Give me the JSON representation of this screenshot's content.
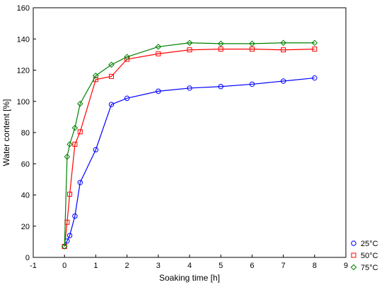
{
  "chart_data": {
    "type": "line",
    "title": "",
    "xlabel": "Soaking time [h]",
    "ylabel": "Water content [%]",
    "xlim": [
      -1,
      9
    ],
    "ylim": [
      0,
      160
    ],
    "xticks": [
      -1,
      0,
      1,
      2,
      3,
      4,
      5,
      6,
      7,
      8,
      9
    ],
    "yticks": [
      0,
      20,
      40,
      60,
      80,
      100,
      120,
      140,
      160
    ],
    "grid": false,
    "legend_position": "bottom-right",
    "series": [
      {
        "name": "25°C",
        "color": "#0000ff",
        "marker": "circle",
        "x": [
          0,
          0.083,
          0.167,
          0.333,
          0.5,
          1,
          1.5,
          2,
          3,
          4,
          5,
          6,
          7,
          8
        ],
        "y": [
          7,
          10.5,
          14,
          26.5,
          48,
          69,
          98,
          102,
          106.5,
          108.5,
          109.5,
          111,
          113,
          115
        ]
      },
      {
        "name": "50°C",
        "color": "#ff0000",
        "marker": "square",
        "x": [
          0,
          0.083,
          0.167,
          0.333,
          0.5,
          1,
          1.5,
          2,
          3,
          4,
          5,
          6,
          7,
          8
        ],
        "y": [
          7,
          22.5,
          40.5,
          72.5,
          80.5,
          114,
          116,
          127,
          130.5,
          133,
          133.5,
          133.5,
          133,
          133.5
        ]
      },
      {
        "name": "75°C",
        "color": "#008000",
        "marker": "diamond",
        "x": [
          0,
          0.083,
          0.167,
          0.333,
          0.5,
          1,
          1.5,
          2,
          3,
          4,
          5,
          6,
          7,
          8
        ],
        "y": [
          7,
          64.5,
          72.5,
          83,
          98.5,
          116.5,
          123.5,
          128.5,
          135,
          137.5,
          137,
          137,
          137.5,
          137.5
        ]
      }
    ]
  }
}
